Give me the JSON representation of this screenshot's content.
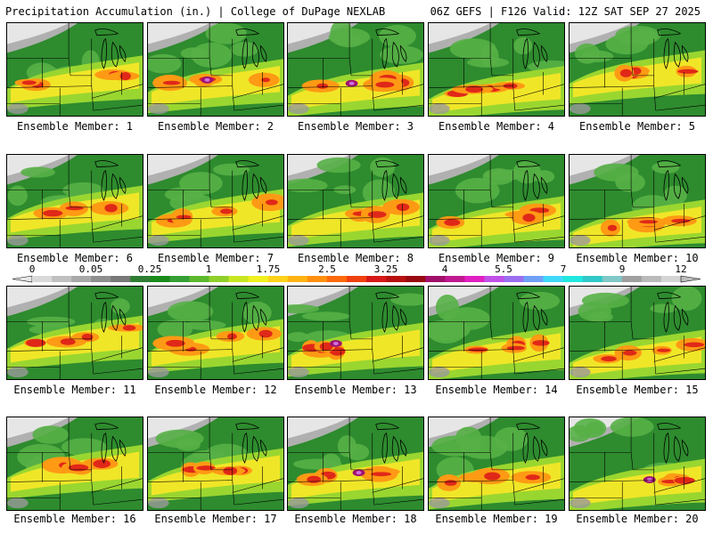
{
  "header": {
    "left": "Precipitation Accumulation (in.) | College of DuPage NEXLAB",
    "right": "06Z GEFS | F126 Valid: 12Z SAT SEP 27 2025"
  },
  "members": [
    {
      "label": "Ensemble Member: 1"
    },
    {
      "label": "Ensemble Member: 2"
    },
    {
      "label": "Ensemble Member: 3"
    },
    {
      "label": "Ensemble Member: 4"
    },
    {
      "label": "Ensemble Member: 5"
    },
    {
      "label": "Ensemble Member: 6"
    },
    {
      "label": "Ensemble Member: 7"
    },
    {
      "label": "Ensemble Member: 8"
    },
    {
      "label": "Ensemble Member: 9"
    },
    {
      "label": "Ensemble Member: 10"
    },
    {
      "label": "Ensemble Member: 11"
    },
    {
      "label": "Ensemble Member: 12"
    },
    {
      "label": "Ensemble Member: 13"
    },
    {
      "label": "Ensemble Member: 14"
    },
    {
      "label": "Ensemble Member: 15"
    },
    {
      "label": "Ensemble Member: 16"
    },
    {
      "label": "Ensemble Member: 17"
    },
    {
      "label": "Ensemble Member: 18"
    },
    {
      "label": "Ensemble Member: 19"
    },
    {
      "label": "Ensemble Member: 20"
    }
  ],
  "colorbar": {
    "labels": [
      "0",
      "0.05",
      "0.25",
      "1",
      "1.75",
      "2.5",
      "3.25",
      "4",
      "5.5",
      "7",
      "9",
      "12"
    ],
    "colors": [
      "#d9d9d9",
      "#c0c0c0",
      "#a8a8a8",
      "#8f8f8f",
      "#787878",
      "#2e7d32",
      "#1b8a1b",
      "#35a035",
      "#5cb82e",
      "#8fcf2a",
      "#c8e620",
      "#f0f020",
      "#ffd21a",
      "#ffb414",
      "#ff9010",
      "#ff6a0c",
      "#f04010",
      "#d81818",
      "#b81010",
      "#980a10",
      "#a0106a",
      "#c01890",
      "#e020c0",
      "#c050e8",
      "#9a6ff0",
      "#70a0f5",
      "#40d8f8",
      "#20e8e0",
      "#30c8c8",
      "#80c8c8",
      "#a0a0a0",
      "#bababa",
      "#d4d4d4"
    ]
  }
}
